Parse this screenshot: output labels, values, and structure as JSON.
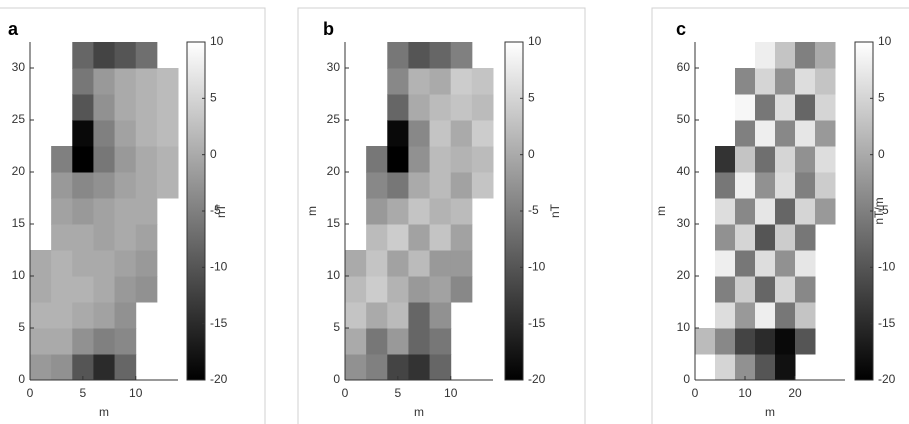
{
  "chart_data": [
    {
      "type": "heatmap",
      "panel_label": "a",
      "xlabel": "m",
      "colorbar_label": "nT",
      "colormap": "gray",
      "xlim": [
        0,
        14
      ],
      "ylim": [
        0,
        32.5
      ],
      "xticks": [
        0,
        5,
        10
      ],
      "yticks": [
        0,
        5,
        10,
        15,
        20,
        25,
        30
      ],
      "clim": [
        -20,
        10
      ],
      "cticks": [
        -20,
        -15,
        -10,
        -5,
        0,
        5,
        10
      ],
      "xbins": [
        0,
        2,
        4,
        6,
        8,
        10,
        12,
        14
      ],
      "ybins": [
        0,
        2.5,
        5,
        7.5,
        10,
        12.5,
        15,
        17.5,
        20,
        22.5,
        25,
        27.5,
        30,
        32.5
      ],
      "z": [
        [
          -2,
          -3,
          -10,
          -15,
          -8,
          null,
          null
        ],
        [
          0,
          0,
          -3,
          -5,
          -4,
          null,
          null
        ],
        [
          1,
          1,
          0,
          -1,
          -3,
          null,
          null
        ],
        [
          0,
          1,
          1,
          0,
          -2,
          -3,
          null
        ],
        [
          0,
          1,
          0,
          0,
          -1,
          -2,
          null
        ],
        [
          null,
          0,
          0,
          -1,
          0,
          -1,
          null
        ],
        [
          null,
          -1,
          -2,
          -1,
          0,
          0,
          null
        ],
        [
          null,
          -2,
          -4,
          -3,
          -1,
          0,
          1
        ],
        [
          null,
          -5,
          -20,
          -6,
          -2,
          0,
          1
        ],
        [
          null,
          null,
          -19,
          -5,
          -1,
          1,
          2
        ],
        [
          null,
          null,
          -10,
          -3,
          0,
          1,
          2
        ],
        [
          null,
          null,
          -6,
          -2,
          0,
          1,
          2
        ],
        [
          null,
          null,
          -8,
          -12,
          -10,
          -7,
          null
        ]
      ]
    },
    {
      "type": "heatmap",
      "panel_label": "b",
      "xlabel": "m",
      "ylabel": "m",
      "colorbar_label": "nT",
      "colormap": "gray",
      "xlim": [
        0,
        14
      ],
      "ylim": [
        0,
        32.5
      ],
      "xticks": [
        0,
        5,
        10
      ],
      "yticks": [
        0,
        5,
        10,
        15,
        20,
        25,
        30
      ],
      "clim": [
        -20,
        10
      ],
      "cticks": [
        -20,
        -15,
        -10,
        -5,
        0,
        5,
        10
      ],
      "xbins": [
        0,
        2,
        4,
        6,
        8,
        10,
        12,
        14
      ],
      "ybins": [
        0,
        2.5,
        5,
        7.5,
        10,
        12.5,
        15,
        17.5,
        20,
        22.5,
        25,
        27.5,
        30,
        32.5
      ],
      "z": [
        [
          -3,
          -5,
          -12,
          -14,
          -8,
          null,
          null
        ],
        [
          0,
          -6,
          -2,
          -8,
          -6,
          null,
          null
        ],
        [
          3,
          0,
          2,
          -8,
          -3,
          null,
          null
        ],
        [
          2,
          4,
          1,
          -2,
          -1,
          -4,
          null
        ],
        [
          0,
          3,
          -1,
          2,
          -2,
          -2,
          null
        ],
        [
          null,
          2,
          4,
          -1,
          3,
          -1,
          null
        ],
        [
          null,
          -2,
          0,
          3,
          1,
          2,
          null
        ],
        [
          null,
          -4,
          -6,
          0,
          2,
          -1,
          3
        ],
        [
          null,
          -6,
          -20,
          -3,
          2,
          1,
          2
        ],
        [
          null,
          null,
          -19,
          -4,
          3,
          0,
          4
        ],
        [
          null,
          null,
          -8,
          0,
          2,
          3,
          2
        ],
        [
          null,
          null,
          -4,
          1,
          0,
          4,
          3
        ],
        [
          null,
          null,
          -6,
          -10,
          -8,
          -5,
          null
        ]
      ]
    },
    {
      "type": "heatmap",
      "panel_label": "c",
      "xlabel": "m",
      "ylabel": "m",
      "colorbar_label": "nT/m",
      "colormap": "gray",
      "xlim": [
        0,
        30
      ],
      "ylim": [
        0,
        65
      ],
      "xticks": [
        0,
        10,
        20
      ],
      "yticks": [
        0,
        10,
        20,
        30,
        40,
        50,
        60
      ],
      "clim": [
        -20,
        10
      ],
      "cticks": [
        -20,
        -15,
        -10,
        -5,
        0,
        5,
        10
      ],
      "xbins": [
        0,
        4,
        8,
        12,
        16,
        20,
        24,
        28
      ],
      "ybins": [
        0,
        5,
        10,
        15,
        20,
        25,
        30,
        35,
        40,
        45,
        50,
        55,
        60,
        65
      ],
      "z": [
        [
          null,
          5,
          -3,
          -10,
          -18,
          null,
          null
        ],
        [
          2,
          -4,
          -12,
          -15,
          -19,
          -10,
          null
        ],
        [
          null,
          6,
          -2,
          8,
          -6,
          3,
          null
        ],
        [
          null,
          -5,
          4,
          -8,
          5,
          -4,
          null
        ],
        [
          null,
          8,
          -6,
          6,
          -3,
          7,
          null
        ],
        [
          null,
          -3,
          5,
          -10,
          4,
          -6,
          null
        ],
        [
          null,
          6,
          -4,
          7,
          -8,
          5,
          -2
        ],
        [
          null,
          -6,
          8,
          -3,
          6,
          -5,
          4
        ],
        [
          null,
          -14,
          3,
          -7,
          5,
          -3,
          6
        ],
        [
          null,
          null,
          -5,
          8,
          -4,
          7,
          -2
        ],
        [
          null,
          null,
          9,
          -6,
          6,
          -8,
          5
        ],
        [
          null,
          null,
          -4,
          5,
          -3,
          6,
          3
        ],
        [
          null,
          null,
          null,
          8,
          3,
          -5,
          0
        ]
      ]
    }
  ]
}
